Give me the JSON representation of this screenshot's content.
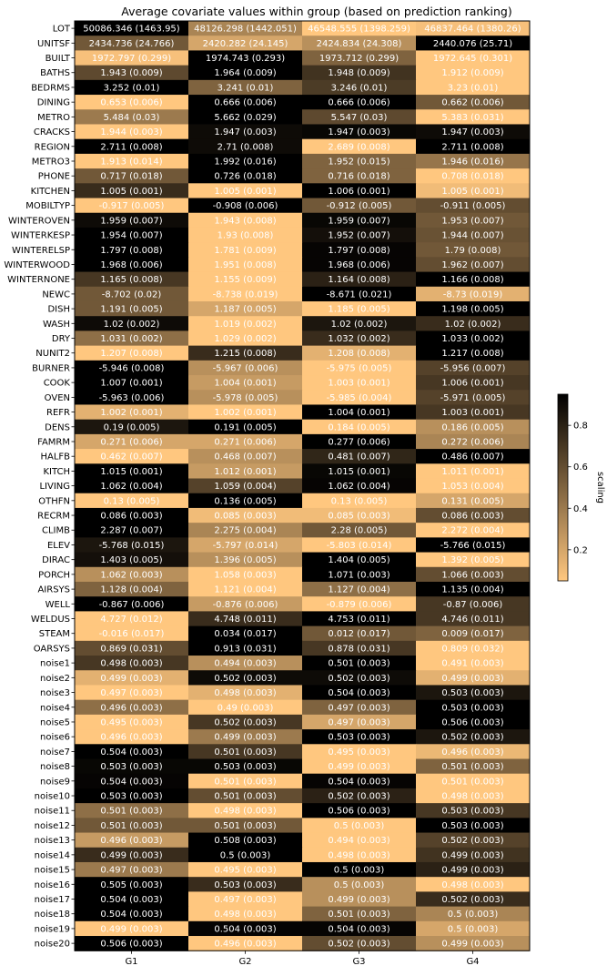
{
  "chart_data": {
    "type": "heatmap",
    "title": "Average covariate values within group (based on prediction ranking)",
    "columns": [
      "G1",
      "G2",
      "G3",
      "G4"
    ],
    "rows": [
      {
        "name": "LOT",
        "labels": [
          "50086.346 (1463.95)",
          "48126.298 (1442.051)",
          "46548.555 (1398.259)",
          "46837.464 (1380.26)"
        ],
        "scaling": [
          0.95,
          0.35,
          0.05,
          0.08
        ]
      },
      {
        "name": "UNITSF",
        "labels": [
          "2434.736 (24.766)",
          "2420.282 (24.145)",
          "2424.834 (24.308)",
          "2440.076 (25.71)"
        ],
        "scaling": [
          0.55,
          0.2,
          0.3,
          0.95
        ]
      },
      {
        "name": "BUILT",
        "labels": [
          "1972.797 (0.299)",
          "1974.743 (0.293)",
          "1973.712 (0.299)",
          "1972.645 (0.301)"
        ],
        "scaling": [
          0.08,
          0.95,
          0.5,
          0.05
        ]
      },
      {
        "name": "BATHS",
        "labels": [
          "1.943 (0.009)",
          "1.964 (0.009)",
          "1.948 (0.009)",
          "1.912 (0.009)"
        ],
        "scaling": [
          0.62,
          0.95,
          0.72,
          0.05
        ]
      },
      {
        "name": "BEDRMS",
        "labels": [
          "3.252 (0.01)",
          "3.241 (0.01)",
          "3.246 (0.01)",
          "3.23 (0.01)"
        ],
        "scaling": [
          0.95,
          0.5,
          0.68,
          0.05
        ]
      },
      {
        "name": "DINING",
        "labels": [
          "0.653 (0.006)",
          "0.666 (0.006)",
          "0.666 (0.006)",
          "0.662 (0.006)"
        ],
        "scaling": [
          0.05,
          0.95,
          0.95,
          0.55
        ]
      },
      {
        "name": "METRO",
        "labels": [
          "5.484 (0.03)",
          "5.662 (0.029)",
          "5.547 (0.03)",
          "5.383 (0.031)"
        ],
        "scaling": [
          0.4,
          0.95,
          0.62,
          0.05
        ]
      },
      {
        "name": "CRACKS",
        "labels": [
          "1.944 (0.003)",
          "1.947 (0.003)",
          "1.947 (0.003)",
          "1.947 (0.003)"
        ],
        "scaling": [
          0.05,
          0.9,
          0.92,
          0.9
        ]
      },
      {
        "name": "REGION",
        "labels": [
          "2.711 (0.008)",
          "2.71 (0.008)",
          "2.689 (0.008)",
          "2.711 (0.008)"
        ],
        "scaling": [
          0.95,
          0.9,
          0.05,
          0.95
        ]
      },
      {
        "name": "METRO3",
        "labels": [
          "1.913 (0.014)",
          "1.992 (0.016)",
          "1.952 (0.015)",
          "1.946 (0.016)"
        ],
        "scaling": [
          0.05,
          0.95,
          0.5,
          0.42
        ]
      },
      {
        "name": "PHONE",
        "labels": [
          "0.717 (0.018)",
          "0.726 (0.018)",
          "0.716 (0.018)",
          "0.708 (0.018)"
        ],
        "scaling": [
          0.55,
          0.95,
          0.5,
          0.05
        ]
      },
      {
        "name": "KITCHEN",
        "labels": [
          "1.005 (0.001)",
          "1.005 (0.001)",
          "1.006 (0.001)",
          "1.005 (0.001)"
        ],
        "scaling": [
          0.75,
          0.05,
          0.95,
          0.1
        ]
      },
      {
        "name": "MOBILTYP",
        "labels": [
          "-0.917 (0.005)",
          "-0.908 (0.006)",
          "-0.912 (0.005)",
          "-0.911 (0.005)"
        ],
        "scaling": [
          0.05,
          0.95,
          0.55,
          0.6
        ]
      },
      {
        "name": "WINTEROVEN",
        "labels": [
          "1.959 (0.007)",
          "1.943 (0.008)",
          "1.959 (0.007)",
          "1.953 (0.007)"
        ],
        "scaling": [
          0.9,
          0.05,
          0.92,
          0.55
        ]
      },
      {
        "name": "WINTERKESP",
        "labels": [
          "1.954 (0.007)",
          "1.93 (0.008)",
          "1.952 (0.007)",
          "1.944 (0.007)"
        ],
        "scaling": [
          0.95,
          0.05,
          0.88,
          0.58
        ]
      },
      {
        "name": "WINTERELSP",
        "labels": [
          "1.797 (0.008)",
          "1.781 (0.009)",
          "1.797 (0.008)",
          "1.79 (0.008)"
        ],
        "scaling": [
          0.95,
          0.05,
          0.93,
          0.55
        ]
      },
      {
        "name": "WINTERWOOD",
        "labels": [
          "1.968 (0.006)",
          "1.951 (0.008)",
          "1.968 (0.006)",
          "1.962 (0.007)"
        ],
        "scaling": [
          0.95,
          0.05,
          0.93,
          0.6
        ]
      },
      {
        "name": "WINTERNONE",
        "labels": [
          "1.165 (0.008)",
          "1.155 (0.009)",
          "1.164 (0.008)",
          "1.166 (0.008)"
        ],
        "scaling": [
          0.7,
          0.05,
          0.8,
          0.95
        ]
      },
      {
        "name": "NEWC",
        "labels": [
          "-8.702 (0.02)",
          "-8.738 (0.019)",
          "-8.671 (0.021)",
          "-8.73 (0.019)"
        ],
        "scaling": [
          0.55,
          0.05,
          0.95,
          0.15
        ]
      },
      {
        "name": "DISH",
        "labels": [
          "1.191 (0.005)",
          "1.187 (0.005)",
          "1.185 (0.005)",
          "1.198 (0.005)"
        ],
        "scaling": [
          0.55,
          0.2,
          0.05,
          0.95
        ]
      },
      {
        "name": "WASH",
        "labels": [
          "1.02 (0.002)",
          "1.019 (0.002)",
          "1.02 (0.002)",
          "1.02 (0.002)"
        ],
        "scaling": [
          0.9,
          0.05,
          0.85,
          0.75
        ]
      },
      {
        "name": "DRY",
        "labels": [
          "1.031 (0.002)",
          "1.029 (0.002)",
          "1.032 (0.002)",
          "1.033 (0.002)"
        ],
        "scaling": [
          0.45,
          0.05,
          0.75,
          0.95
        ]
      },
      {
        "name": "NUNIT2",
        "labels": [
          "1.207 (0.008)",
          "1.215 (0.008)",
          "1.208 (0.008)",
          "1.217 (0.008)"
        ],
        "scaling": [
          0.05,
          0.75,
          0.15,
          0.95
        ]
      },
      {
        "name": "BURNER",
        "labels": [
          "-5.946 (0.008)",
          "-5.967 (0.006)",
          "-5.975 (0.005)",
          "-5.956 (0.007)"
        ],
        "scaling": [
          0.95,
          0.3,
          0.05,
          0.65
        ]
      },
      {
        "name": "COOK",
        "labels": [
          "1.007 (0.001)",
          "1.004 (0.001)",
          "1.003 (0.001)",
          "1.006 (0.001)"
        ],
        "scaling": [
          0.95,
          0.25,
          0.05,
          0.7
        ]
      },
      {
        "name": "OVEN",
        "labels": [
          "-5.963 (0.006)",
          "-5.978 (0.005)",
          "-5.985 (0.004)",
          "-5.971 (0.005)"
        ],
        "scaling": [
          0.95,
          0.3,
          0.05,
          0.65
        ]
      },
      {
        "name": "REFR",
        "labels": [
          "1.002 (0.001)",
          "1.002 (0.001)",
          "1.004 (0.001)",
          "1.003 (0.001)"
        ],
        "scaling": [
          0.15,
          0.05,
          0.95,
          0.7
        ]
      },
      {
        "name": "DENS",
        "labels": [
          "0.19 (0.005)",
          "0.191 (0.005)",
          "0.184 (0.005)",
          "0.186 (0.005)"
        ],
        "scaling": [
          0.85,
          0.95,
          0.05,
          0.3
        ]
      },
      {
        "name": "FAMRM",
        "labels": [
          "0.271 (0.006)",
          "0.271 (0.006)",
          "0.277 (0.006)",
          "0.272 (0.006)"
        ],
        "scaling": [
          0.2,
          0.2,
          0.95,
          0.35
        ]
      },
      {
        "name": "HALFB",
        "labels": [
          "0.462 (0.007)",
          "0.468 (0.007)",
          "0.481 (0.007)",
          "0.486 (0.007)"
        ],
        "scaling": [
          0.05,
          0.3,
          0.78,
          0.95
        ]
      },
      {
        "name": "KITCH",
        "labels": [
          "1.015 (0.001)",
          "1.012 (0.001)",
          "1.015 (0.001)",
          "1.011 (0.001)"
        ],
        "scaling": [
          0.95,
          0.25,
          0.92,
          0.05
        ]
      },
      {
        "name": "LIVING",
        "labels": [
          "1.062 (0.004)",
          "1.059 (0.004)",
          "1.062 (0.004)",
          "1.053 (0.004)"
        ],
        "scaling": [
          0.95,
          0.65,
          0.93,
          0.05
        ]
      },
      {
        "name": "OTHFN",
        "labels": [
          "0.13 (0.005)",
          "0.136 (0.005)",
          "0.13 (0.005)",
          "0.131 (0.005)"
        ],
        "scaling": [
          0.05,
          0.95,
          0.05,
          0.2
        ]
      },
      {
        "name": "RECRM",
        "labels": [
          "0.086 (0.003)",
          "0.085 (0.003)",
          "0.085 (0.003)",
          "0.086 (0.003)"
        ],
        "scaling": [
          0.95,
          0.1,
          0.1,
          0.6
        ]
      },
      {
        "name": "CLIMB",
        "labels": [
          "2.287 (0.007)",
          "2.275 (0.004)",
          "2.28 (0.005)",
          "2.272 (0.004)"
        ],
        "scaling": [
          0.95,
          0.35,
          0.55,
          0.05
        ]
      },
      {
        "name": "ELEV",
        "labels": [
          "-5.768 (0.015)",
          "-5.797 (0.014)",
          "-5.803 (0.014)",
          "-5.766 (0.015)"
        ],
        "scaling": [
          0.85,
          0.2,
          0.05,
          0.95
        ]
      },
      {
        "name": "DIRAC",
        "labels": [
          "1.403 (0.005)",
          "1.396 (0.005)",
          "1.404 (0.005)",
          "1.392 (0.005)"
        ],
        "scaling": [
          0.88,
          0.3,
          0.95,
          0.05
        ]
      },
      {
        "name": "PORCH",
        "labels": [
          "1.062 (0.003)",
          "1.058 (0.003)",
          "1.071 (0.003)",
          "1.066 (0.003)"
        ],
        "scaling": [
          0.3,
          0.05,
          0.95,
          0.6
        ]
      },
      {
        "name": "AIRSYS",
        "labels": [
          "1.128 (0.004)",
          "1.121 (0.004)",
          "1.127 (0.004)",
          "1.135 (0.004)"
        ],
        "scaling": [
          0.5,
          0.05,
          0.45,
          0.95
        ]
      },
      {
        "name": "WELL",
        "labels": [
          "-0.867 (0.006)",
          "-0.876 (0.006)",
          "-0.879 (0.006)",
          "-0.87 (0.006)"
        ],
        "scaling": [
          0.95,
          0.25,
          0.05,
          0.7
        ]
      },
      {
        "name": "WELDUS",
        "labels": [
          "4.727 (0.012)",
          "4.748 (0.011)",
          "4.753 (0.011)",
          "4.746 (0.011)"
        ],
        "scaling": [
          0.05,
          0.75,
          0.95,
          0.7
        ]
      },
      {
        "name": "STEAM",
        "labels": [
          "-0.016 (0.017)",
          "0.034 (0.017)",
          "0.012 (0.017)",
          "0.009 (0.017)"
        ],
        "scaling": [
          0.05,
          0.95,
          0.55,
          0.5
        ]
      },
      {
        "name": "OARSYS",
        "labels": [
          "0.869 (0.031)",
          "0.913 (0.031)",
          "0.878 (0.031)",
          "0.809 (0.032)"
        ],
        "scaling": [
          0.6,
          0.95,
          0.7,
          0.05
        ]
      },
      {
        "name": "noise1",
        "labels": [
          "0.498 (0.003)",
          "0.494 (0.003)",
          "0.501 (0.003)",
          "0.491 (0.003)"
        ],
        "scaling": [
          0.7,
          0.3,
          0.95,
          0.05
        ]
      },
      {
        "name": "noise2",
        "labels": [
          "0.499 (0.003)",
          "0.502 (0.003)",
          "0.502 (0.003)",
          "0.499 (0.003)"
        ],
        "scaling": [
          0.15,
          0.9,
          0.9,
          0.15
        ]
      },
      {
        "name": "noise3",
        "labels": [
          "0.497 (0.003)",
          "0.498 (0.003)",
          "0.504 (0.003)",
          "0.503 (0.003)"
        ],
        "scaling": [
          0.05,
          0.15,
          0.95,
          0.85
        ]
      },
      {
        "name": "noise4",
        "labels": [
          "0.496 (0.003)",
          "0.49 (0.003)",
          "0.497 (0.003)",
          "0.503 (0.003)"
        ],
        "scaling": [
          0.45,
          0.05,
          0.5,
          0.95
        ]
      },
      {
        "name": "noise5",
        "labels": [
          "0.495 (0.003)",
          "0.502 (0.003)",
          "0.497 (0.003)",
          "0.506 (0.003)"
        ],
        "scaling": [
          0.05,
          0.7,
          0.2,
          0.95
        ]
      },
      {
        "name": "noise6",
        "labels": [
          "0.496 (0.003)",
          "0.499 (0.003)",
          "0.503 (0.003)",
          "0.502 (0.003)"
        ],
        "scaling": [
          0.05,
          0.4,
          0.95,
          0.85
        ]
      },
      {
        "name": "noise7",
        "labels": [
          "0.504 (0.003)",
          "0.501 (0.003)",
          "0.495 (0.003)",
          "0.496 (0.003)"
        ],
        "scaling": [
          0.95,
          0.7,
          0.05,
          0.12
        ]
      },
      {
        "name": "noise8",
        "labels": [
          "0.503 (0.003)",
          "0.503 (0.003)",
          "0.499 (0.003)",
          "0.501 (0.003)"
        ],
        "scaling": [
          0.92,
          0.92,
          0.05,
          0.5
        ]
      },
      {
        "name": "noise9",
        "labels": [
          "0.504 (0.003)",
          "0.501 (0.003)",
          "0.504 (0.003)",
          "0.501 (0.003)"
        ],
        "scaling": [
          0.93,
          0.05,
          0.93,
          0.05
        ]
      },
      {
        "name": "noise10",
        "labels": [
          "0.503 (0.003)",
          "0.501 (0.003)",
          "0.502 (0.003)",
          "0.498 (0.003)"
        ],
        "scaling": [
          0.95,
          0.6,
          0.8,
          0.05
        ]
      },
      {
        "name": "noise11",
        "labels": [
          "0.501 (0.003)",
          "0.498 (0.003)",
          "0.506 (0.003)",
          "0.503 (0.003)"
        ],
        "scaling": [
          0.45,
          0.05,
          0.95,
          0.7
        ]
      },
      {
        "name": "noise12",
        "labels": [
          "0.501 (0.003)",
          "0.501 (0.003)",
          "0.5 (0.003)",
          "0.503 (0.003)"
        ],
        "scaling": [
          0.55,
          0.55,
          0.05,
          0.95
        ]
      },
      {
        "name": "noise13",
        "labels": [
          "0.496 (0.003)",
          "0.508 (0.003)",
          "0.494 (0.003)",
          "0.502 (0.003)"
        ],
        "scaling": [
          0.25,
          0.95,
          0.05,
          0.65
        ]
      },
      {
        "name": "noise14",
        "labels": [
          "0.499 (0.003)",
          "0.5 (0.003)",
          "0.498 (0.003)",
          "0.499 (0.003)"
        ],
        "scaling": [
          0.75,
          0.95,
          0.05,
          0.72
        ]
      },
      {
        "name": "noise15",
        "labels": [
          "0.497 (0.003)",
          "0.495 (0.003)",
          "0.5 (0.003)",
          "0.499 (0.003)"
        ],
        "scaling": [
          0.4,
          0.05,
          0.95,
          0.8
        ]
      },
      {
        "name": "noise16",
        "labels": [
          "0.505 (0.003)",
          "0.503 (0.003)",
          "0.5 (0.003)",
          "0.498 (0.003)"
        ],
        "scaling": [
          0.95,
          0.75,
          0.3,
          0.05
        ]
      },
      {
        "name": "noise17",
        "labels": [
          "0.504 (0.003)",
          "0.497 (0.003)",
          "0.499 (0.003)",
          "0.502 (0.003)"
        ],
        "scaling": [
          0.95,
          0.05,
          0.3,
          0.75
        ]
      },
      {
        "name": "noise18",
        "labels": [
          "0.504 (0.003)",
          "0.498 (0.003)",
          "0.501 (0.003)",
          "0.5 (0.003)"
        ],
        "scaling": [
          0.95,
          0.05,
          0.5,
          0.35
        ]
      },
      {
        "name": "noise19",
        "labels": [
          "0.499 (0.003)",
          "0.504 (0.003)",
          "0.504 (0.003)",
          "0.5 (0.003)"
        ],
        "scaling": [
          0.05,
          0.93,
          0.93,
          0.2
        ]
      },
      {
        "name": "noise20",
        "labels": [
          "0.506 (0.003)",
          "0.496 (0.003)",
          "0.502 (0.003)",
          "0.499 (0.003)"
        ],
        "scaling": [
          0.95,
          0.05,
          0.6,
          0.3
        ]
      }
    ],
    "colorbar": {
      "label": "scaling",
      "range": [
        0.05,
        0.95
      ],
      "ticks": [
        0.2,
        0.4,
        0.6,
        0.8
      ],
      "tick_labels": [
        "0.2",
        "0.4",
        "0.6",
        "0.8"
      ],
      "colormap": "copper_r",
      "colors": [
        "#ffc77f",
        "#000000"
      ]
    },
    "text_colors": {
      "light": "#ffffff",
      "dark": "#ffffff"
    },
    "grid": false,
    "legend": "colorbar-right"
  }
}
